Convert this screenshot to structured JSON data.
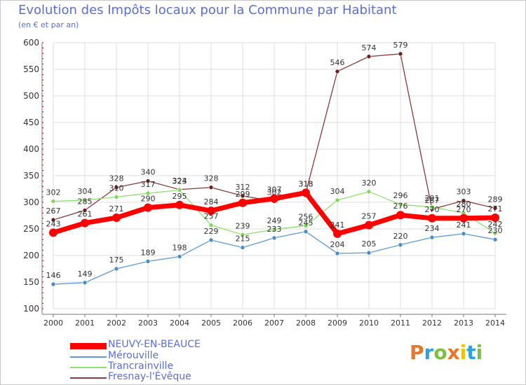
{
  "title": "Evolution des Impôts locaux pour la Commune par Habitant",
  "subtitle": "(en € et par an)",
  "logo_text": "Proxiti",
  "colors": {
    "title": "#5a6fd1",
    "grid": "#dcdcdc",
    "axis": "#333333"
  },
  "chart_data": {
    "type": "line",
    "x": [
      "2000",
      "2001",
      "2002",
      "2003",
      "2004",
      "2005",
      "2006",
      "2007",
      "2008",
      "2009",
      "2010",
      "2011",
      "2012",
      "2013",
      "2014"
    ],
    "ylim": [
      100,
      600
    ],
    "yticks": [
      100,
      150,
      200,
      250,
      300,
      350,
      400,
      450,
      500,
      550,
      600
    ],
    "grid": true,
    "legend_position": "bottom-left",
    "series": [
      {
        "name": "NEUVY-EN-BEAUCE",
        "color": "#ff0000",
        "point_color": "#ff0000",
        "values": [
          243,
          261,
          271,
          290,
          295,
          284,
          299,
          307,
          318,
          241,
          257,
          276,
          270,
          270,
          271
        ]
      },
      {
        "name": "Mérouville",
        "color": "#5b9bd5",
        "point_color": "#4a8bc8",
        "values": [
          146,
          149,
          175,
          189,
          198,
          229,
          215,
          233,
          245,
          204,
          205,
          220,
          234,
          241,
          230
        ]
      },
      {
        "name": "Trancrainville",
        "color": "#90e070",
        "point_color": "#7ed858",
        "values": [
          302,
          304,
          310,
          317,
          323,
          257,
          239,
          249,
          256,
          304,
          320,
          296,
          291,
          280,
          242
        ]
      },
      {
        "name": "Fresnay-l'Évêque",
        "color": "#8b3a3a",
        "point_color": "#6b1e1e",
        "values": [
          267,
          285,
          328,
          340,
          324,
          328,
          312,
          302,
          318,
          546,
          574,
          579,
          287,
          303,
          289
        ]
      }
    ]
  }
}
